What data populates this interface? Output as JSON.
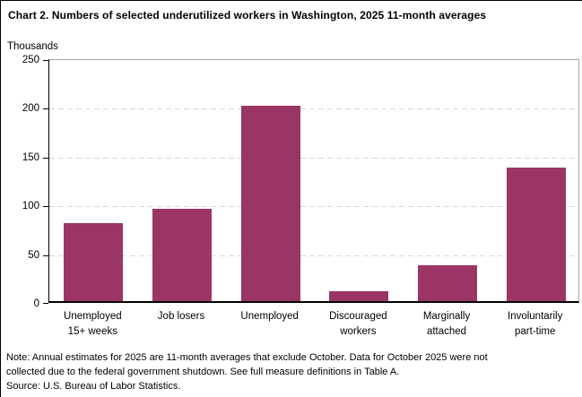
{
  "title": "Chart 2. Numbers of selected underutilized workers in Washington, 2025 11-month averages",
  "unit_label": "Thousands",
  "note": "Note:  Annual estimates for 2025 are 11-month averages that exclude October. Data for October 2025 were not\ncollected due to the federal government shutdown. See full measure definitions in Table A.",
  "source": "Source: U.S. Bureau of Labor Statistics.",
  "colors": {
    "bar": "#9a3566",
    "gridline": "#d9d9d9",
    "plot_border": "#a6a6a6",
    "axis": "#000000",
    "text": "#000000"
  },
  "chart_data": {
    "type": "bar",
    "title": "Chart 2. Numbers of selected underutilized workers in Washington, 2025 11-month averages",
    "categories": [
      "Unemployed 15+ weeks",
      "Job losers",
      "Unemployed",
      "Discouraged workers",
      "Marginally attached",
      "Involuntarily part-time"
    ],
    "category_label_lines": [
      [
        "Unemployed",
        "15+ weeks"
      ],
      [
        "Job losers"
      ],
      [
        "Unemployed"
      ],
      [
        "Discouraged",
        "workers"
      ],
      [
        "Marginally",
        "attached"
      ],
      [
        "Involuntarily",
        "part-time"
      ]
    ],
    "values": [
      80,
      95,
      200,
      10,
      37,
      137
    ],
    "xlabel": "",
    "ylabel": "Thousands",
    "ylim": [
      0,
      250
    ],
    "yticks": [
      0,
      50,
      100,
      150,
      200,
      250
    ],
    "grid": "horizontal-dashed",
    "gridline_values": [
      50,
      100,
      150,
      200
    ],
    "legend_position": "none",
    "bar_color": "#9a3566"
  }
}
